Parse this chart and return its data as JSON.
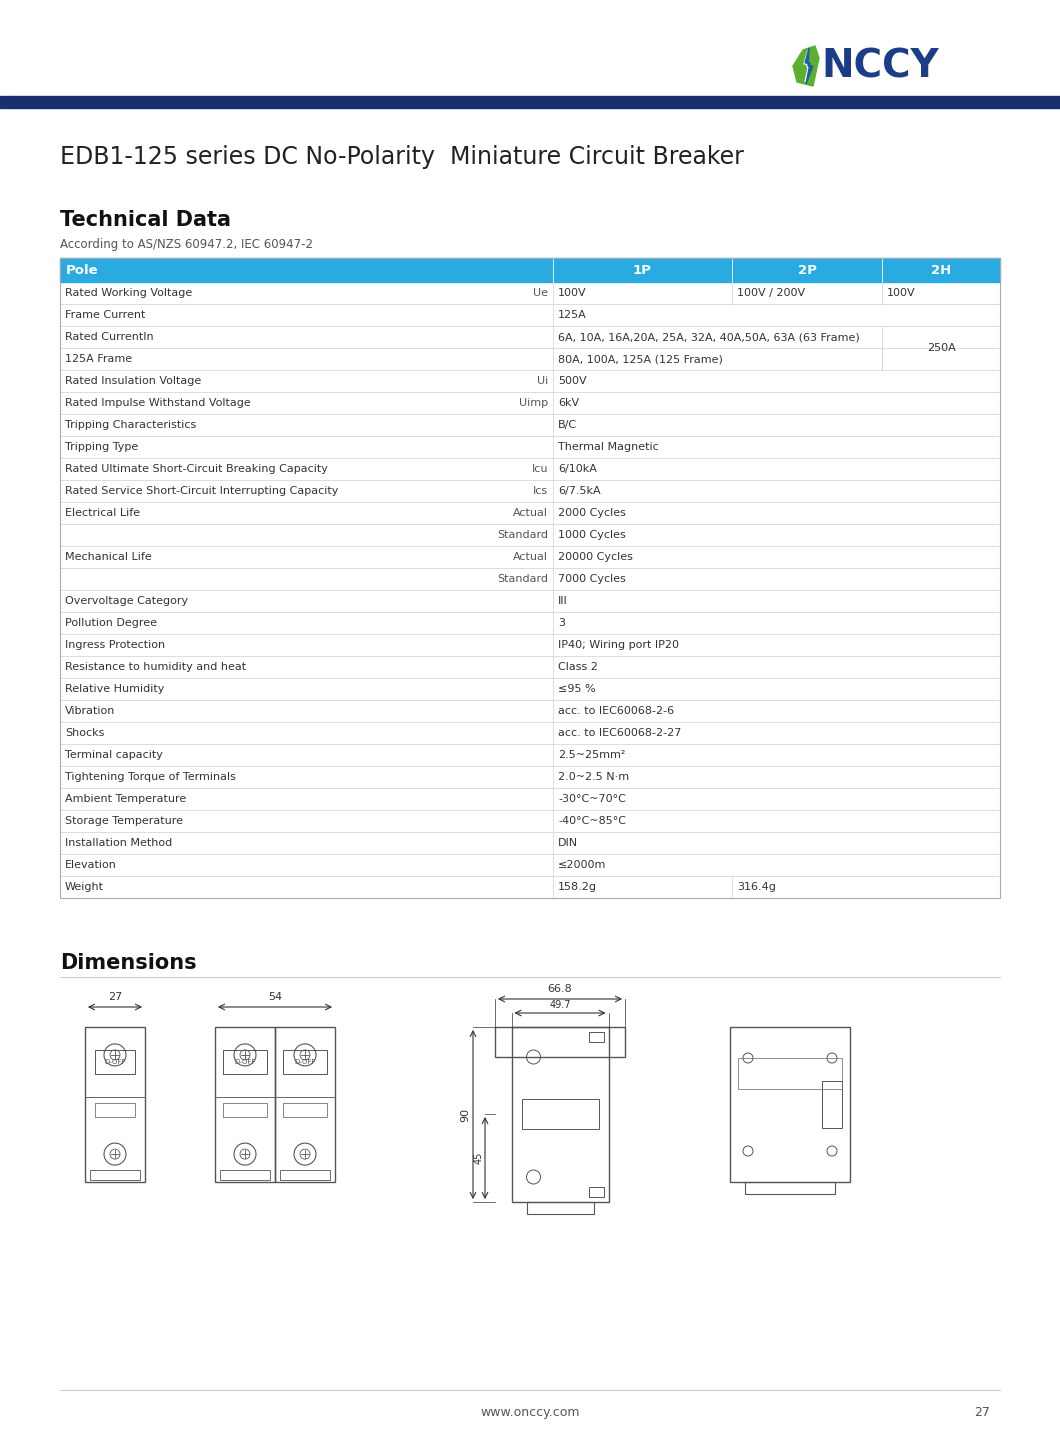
{
  "page_title": "EDB1-125 series DC No-Polarity  Miniature Circuit Breaker",
  "section1_title": "Technical Data",
  "section1_subtitle": "According to AS/NZS 60947.2, IEC 60947-2",
  "section2_title": "Dimensions",
  "header_bg": "#29abe2",
  "header_text": "#ffffff",
  "row_bg": "#ffffff",
  "border_color": "#d0d0d0",
  "dark_bar_color": "#1b2f6e",
  "table_headers": [
    "Pole",
    "1P",
    "2P",
    "2H"
  ],
  "table_rows": [
    [
      "Rated Working Voltage",
      "Ue",
      "100V",
      "100V / 200V",
      "100V"
    ],
    [
      "Frame Current",
      "",
      "125A",
      "",
      ""
    ],
    [
      "Rated CurrentIn",
      "",
      "6A, 10A, 16A,20A, 25A, 32A, 40A,50A, 63A (63 Frame)",
      "MERGE250A",
      "250A"
    ],
    [
      "125A Frame",
      "",
      "80A, 100A, 125A (125 Frame)",
      "MERGE250A",
      ""
    ],
    [
      "Rated Insulation Voltage",
      "Ui",
      "500V",
      "",
      ""
    ],
    [
      "Rated Impulse Withstand Voltage",
      "Uimp",
      "6kV",
      "",
      ""
    ],
    [
      "Tripping Characteristics",
      "",
      "B/C",
      "",
      ""
    ],
    [
      "Tripping Type",
      "",
      "Thermal Magnetic",
      "",
      ""
    ],
    [
      "Rated Ultimate Short-Circuit Breaking Capacity",
      "Icu",
      "6/10kA",
      "",
      ""
    ],
    [
      "Rated Service Short-Circuit Interrupting Capacity",
      "Ics",
      "6/7.5kA",
      "",
      ""
    ],
    [
      "Electrical Life",
      "Actual",
      "2000 Cycles",
      "",
      ""
    ],
    [
      "",
      "Standard",
      "1000 Cycles",
      "",
      ""
    ],
    [
      "Mechanical Life",
      "Actual",
      "20000 Cycles",
      "",
      ""
    ],
    [
      "",
      "Standard",
      "7000 Cycles",
      "",
      ""
    ],
    [
      "Overvoltage Category",
      "",
      "III",
      "",
      ""
    ],
    [
      "Pollution Degree",
      "",
      "3",
      "",
      ""
    ],
    [
      "Ingress Protection",
      "",
      "IP40; Wiring port IP20",
      "",
      ""
    ],
    [
      "Resistance to humidity and heat",
      "",
      "Class 2",
      "",
      ""
    ],
    [
      "Relative Humidity",
      "",
      "≤95 %",
      "",
      ""
    ],
    [
      "Vibration",
      "",
      "acc. to IEC60068-2-6",
      "",
      ""
    ],
    [
      "Shocks",
      "",
      "acc. to IEC60068-2-27",
      "",
      ""
    ],
    [
      "Terminal capacity",
      "",
      "2.5~25mm²",
      "",
      ""
    ],
    [
      "Tightening Torque of Terminals",
      "",
      "2.0~2.5 N·m",
      "",
      ""
    ],
    [
      "Ambient Temperature",
      "",
      "-30°C~70°C",
      "",
      ""
    ],
    [
      "Storage Temperature",
      "",
      "-40°C~85°C",
      "",
      ""
    ],
    [
      "Installation Method",
      "",
      "DIN",
      "",
      ""
    ],
    [
      "Elevation",
      "",
      "≤2000m",
      "",
      ""
    ],
    [
      "Weight",
      "",
      "158.2g",
      "316.4g",
      ""
    ]
  ],
  "footer_text": "www.onccy.com",
  "footer_page": "27",
  "page_bg": "#ffffff",
  "text_color": "#333333",
  "unit_color": "#555555"
}
